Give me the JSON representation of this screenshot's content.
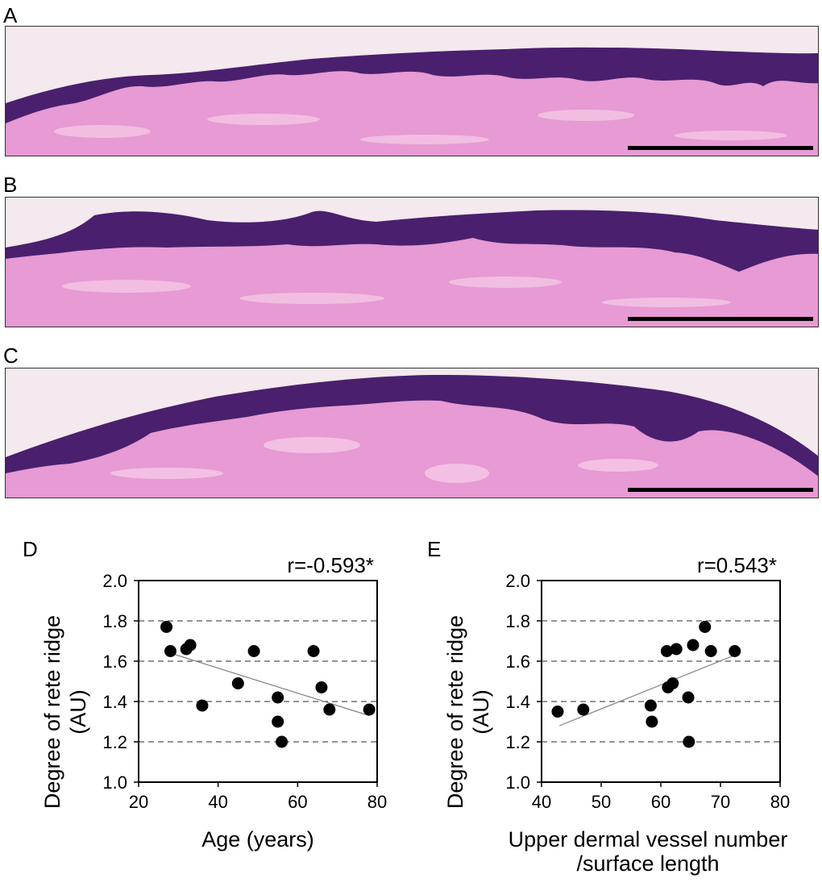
{
  "panels": {
    "a": {
      "letter": "A"
    },
    "b": {
      "letter": "B"
    },
    "c": {
      "letter": "C"
    },
    "d": {
      "letter": "D"
    },
    "e": {
      "letter": "E"
    }
  },
  "colors": {
    "epidermis": "#4a1f6e",
    "dermis": "#e79ad3",
    "dermis_light": "#f4c7e6",
    "background": "#f3e9ee",
    "scale_bar": "#000000",
    "marker": "#000000",
    "trend_line": "#808080",
    "grid": "#555555"
  },
  "chart_data": [
    {
      "id": "D",
      "type": "scatter",
      "title": "",
      "annotation": "r=-0.593*",
      "xlabel": [
        "Age (years)"
      ],
      "ylabel": [
        "Degree of rete ridge",
        "(AU)"
      ],
      "xlim": [
        20,
        80
      ],
      "ylim": [
        1.0,
        2.0
      ],
      "xticks": [
        "20",
        "40",
        "60",
        "80"
      ],
      "yticks": [
        "1.0",
        "1.2",
        "1.4",
        "1.6",
        "1.8",
        "2.0"
      ],
      "grid": "horizontal dashed",
      "points": [
        {
          "x": 27,
          "y": 1.77
        },
        {
          "x": 28,
          "y": 1.65
        },
        {
          "x": 32,
          "y": 1.66
        },
        {
          "x": 33,
          "y": 1.68
        },
        {
          "x": 36,
          "y": 1.38
        },
        {
          "x": 45,
          "y": 1.49
        },
        {
          "x": 49,
          "y": 1.65
        },
        {
          "x": 55,
          "y": 1.42
        },
        {
          "x": 55,
          "y": 1.3
        },
        {
          "x": 56,
          "y": 1.2
        },
        {
          "x": 64,
          "y": 1.65
        },
        {
          "x": 66,
          "y": 1.47
        },
        {
          "x": 68,
          "y": 1.36
        },
        {
          "x": 78,
          "y": 1.36
        }
      ],
      "trend": [
        {
          "x": 28,
          "y": 1.64
        },
        {
          "x": 78,
          "y": 1.33
        }
      ]
    },
    {
      "id": "E",
      "type": "scatter",
      "title": "",
      "annotation": "r=0.543*",
      "xlabel": [
        "Upper dermal vessel number",
        "/surface length"
      ],
      "ylabel": [
        "Degree of rete ridge",
        "(AU)"
      ],
      "xlim": [
        40,
        80
      ],
      "ylim": [
        1.0,
        2.0
      ],
      "xticks": [
        "40",
        "50",
        "60",
        "70",
        "80"
      ],
      "yticks": [
        "1.0",
        "1.2",
        "1.4",
        "1.6",
        "1.8",
        "2.0"
      ],
      "grid": "horizontal dashed",
      "points": [
        {
          "x": 42.7,
          "y": 1.35
        },
        {
          "x": 47,
          "y": 1.36
        },
        {
          "x": 58.3,
          "y": 1.38
        },
        {
          "x": 58.5,
          "y": 1.3
        },
        {
          "x": 61,
          "y": 1.65
        },
        {
          "x": 61.2,
          "y": 1.47
        },
        {
          "x": 62,
          "y": 1.49
        },
        {
          "x": 62.6,
          "y": 1.66
        },
        {
          "x": 64.6,
          "y": 1.42
        },
        {
          "x": 64.7,
          "y": 1.2
        },
        {
          "x": 65.4,
          "y": 1.68
        },
        {
          "x": 67.4,
          "y": 1.77
        },
        {
          "x": 68.4,
          "y": 1.65
        },
        {
          "x": 72.4,
          "y": 1.65
        }
      ],
      "trend": [
        {
          "x": 43,
          "y": 1.28
        },
        {
          "x": 72.4,
          "y": 1.63
        }
      ]
    }
  ]
}
